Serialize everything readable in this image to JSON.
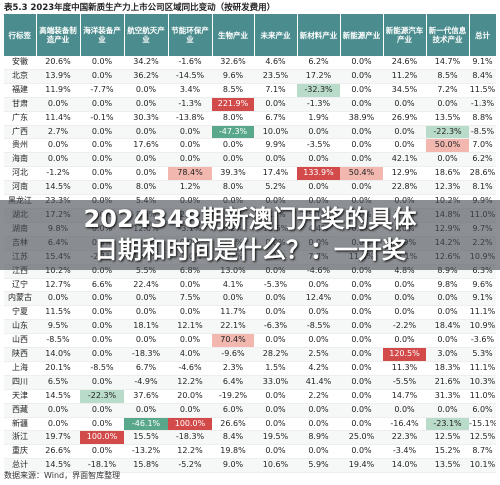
{
  "title": "表5.3 2023年度中国新质生产力上市公司区域同比变动（按研发费用）",
  "headers": [
    "行标签",
    "高端装备制造产业",
    "海洋装备产业",
    "航空航天产业",
    "节能环保产业",
    "生物产业",
    "未来产业",
    "新材料产业",
    "新能源产业",
    "新能源汽车产业",
    "新一代信息技术产业",
    "总计"
  ],
  "rows": [
    [
      "安徽",
      "20.6%",
      "0.0%",
      "34.2%",
      "-1.6%",
      "32.6%",
      "4.6%",
      "6.2%",
      "0.0%",
      "24.6%",
      "14.7%",
      "9.1%"
    ],
    [
      "北京",
      "13.9%",
      "0.0%",
      "36.2%",
      "-14.5%",
      "9.6%",
      "23.5%",
      "17.2%",
      "0.0%",
      "11.2%",
      "8.5%",
      "8.4%"
    ],
    [
      "福建",
      "11.9%",
      "-7.7%",
      "0.0%",
      "3.4%",
      "8.5%",
      "7.1%",
      "-32.3%",
      "0.0%",
      "34.5%",
      "7.2%",
      "11.5%"
    ],
    [
      "甘肃",
      "0.0%",
      "0.0%",
      "0.0%",
      "-1.3%",
      "221.9%",
      "0.0%",
      "-1.3%",
      "0.0%",
      "0.0%",
      "0.0%",
      "-1.3%"
    ],
    [
      "广东",
      "11.4%",
      "-0.1%",
      "30.3%",
      "-13.8%",
      "8.0%",
      "6.7%",
      "1.9%",
      "38.9%",
      "26.9%",
      "13.5%",
      "8.8%"
    ],
    [
      "广西",
      "2.7%",
      "0.0%",
      "0.0%",
      "0.0%",
      "-47.3%",
      "10.0%",
      "0.0%",
      "0.0%",
      "0.0%",
      "-22.3%",
      "-8.5%"
    ],
    [
      "贵州",
      "0.0%",
      "0.0%",
      "17.6%",
      "0.0%",
      "0.0%",
      "9.9%",
      "-3.5%",
      "0.0%",
      "0.0%",
      "50.0%",
      "7.0%"
    ],
    [
      "海南",
      "0.0%",
      "0.0%",
      "0.0%",
      "0.0%",
      "0.0%",
      "0.0%",
      "0.0%",
      "0.0%",
      "42.1%",
      "0.0%",
      "6.2%"
    ],
    [
      "河北",
      "-1.2%",
      "0.0%",
      "0.0%",
      "78.4%",
      "39.3%",
      "17.4%",
      "133.9%",
      "50.4%",
      "12.9%",
      "18.6%",
      "28.6%"
    ],
    [
      "河南",
      "14.5%",
      "0.0%",
      "8.0%",
      "1.2%",
      "8.0%",
      "5.2%",
      "0.0%",
      "0.0%",
      "22.8%",
      "12.3%",
      "8.1%"
    ],
    [
      "黑龙江",
      "23.3%",
      "0.0%",
      "5.4%",
      "0.0%",
      "0.0%",
      "0.0%",
      "0.0%",
      "0.0%",
      "0.0%",
      "10.2%",
      "9.9%"
    ],
    [
      "湖北",
      "17.2%",
      "0.0%",
      "8.6%",
      "2.7%",
      "11.1%",
      "9.3%",
      "5.1%",
      "0.0%",
      "5.2%",
      "14.8%",
      "11.0%"
    ],
    [
      "湖南",
      "9.8%",
      "0.0%",
      "12.0%",
      "-3.1%",
      "6.2%",
      "11.6%",
      "4.4%",
      "0.0%",
      "0.0%",
      "12.9%",
      "9.7%"
    ],
    [
      "吉林",
      "6.4%",
      "0.0%",
      "0.0%",
      "0.0%",
      "3.6%",
      "0.0%",
      "0.0%",
      "0.0%",
      "-8.9%",
      "14.2%",
      "2.2%"
    ],
    [
      "江苏",
      "15.4%",
      "-2.1%",
      "19.5%",
      "-4.0%",
      "9.2%",
      "8.1%",
      "7.7%",
      "11.8%",
      "14.1%",
      "12.6%",
      "10.9%"
    ],
    [
      "江西",
      "10.2%",
      "0.0%",
      "5.5%",
      "6.8%",
      "13.0%",
      "0.0%",
      "-4.6%",
      "0.0%",
      "4.8%",
      "8.9%",
      "6.3%"
    ],
    [
      "辽宁",
      "12.7%",
      "6.6%",
      "22.4%",
      "0.0%",
      "4.1%",
      "-5.3%",
      "0.0%",
      "0.0%",
      "0.0%",
      "9.8%",
      "9.6%"
    ],
    [
      "内蒙古",
      "0.0%",
      "0.0%",
      "0.0%",
      "7.5%",
      "0.0%",
      "0.0%",
      "12.4%",
      "0.0%",
      "0.0%",
      "0.0%",
      "9.1%"
    ],
    [
      "宁夏",
      "11.5%",
      "0.0%",
      "0.0%",
      "0.0%",
      "11.7%",
      "0.0%",
      "0.0%",
      "0.0%",
      "0.0%",
      "0.0%",
      "11.1%"
    ],
    [
      "山东",
      "9.5%",
      "0.0%",
      "18.1%",
      "12.1%",
      "22.1%",
      "-6.3%",
      "-8.5%",
      "0.0%",
      "-2.2%",
      "18.4%",
      "10.9%"
    ],
    [
      "山西",
      "-8.5%",
      "0.0%",
      "0.0%",
      "0.0%",
      "70.4%",
      "0.0%",
      "0.0%",
      "0.0%",
      "0.0%",
      "0.0%",
      "-3.6%"
    ],
    [
      "陕西",
      "14.0%",
      "0.0%",
      "-18.3%",
      "4.0%",
      "-9.6%",
      "28.2%",
      "2.5%",
      "0.0%",
      "120.5%",
      "3.0%",
      "5.3%"
    ],
    [
      "上海",
      "20.1%",
      "-8.5%",
      "6.7%",
      "-4.6%",
      "2.3%",
      "1.5%",
      "4.2%",
      "0.0%",
      "11.3%",
      "18.3%",
      "11.1%"
    ],
    [
      "四川",
      "6.5%",
      "0.0%",
      "-4.9%",
      "12.2%",
      "6.4%",
      "33.0%",
      "41.4%",
      "0.0%",
      "-5.5%",
      "21.6%",
      "10.3%"
    ],
    [
      "天津",
      "14.5%",
      "-22.3%",
      "37.6%",
      "20.0%",
      "-19.2%",
      "0.0%",
      "2.2%",
      "0.0%",
      "14.7%",
      "31.3%",
      "11.0%"
    ],
    [
      "西藏",
      "0.0%",
      "0.0%",
      "0.0%",
      "0.0%",
      "6.0%",
      "0.0%",
      "0.0%",
      "0.0%",
      "0.0%",
      "0.0%",
      "6.0%"
    ],
    [
      "新疆",
      "0.0%",
      "0.0%",
      "-46.1%",
      "100.0%",
      "26.6%",
      "0.0%",
      "0.0%",
      "0.0%",
      "-16.4%",
      "-23.1%",
      "-15.1%"
    ],
    [
      "浙江",
      "19.7%",
      "100.0%",
      "15.5%",
      "-18.3%",
      "8.4%",
      "19.5%",
      "8.9%",
      "25.0%",
      "22.3%",
      "12.5%",
      "12.5%"
    ],
    [
      "重庆",
      "26.6%",
      "0.0%",
      "-13.2%",
      "12.2%",
      "19.8%",
      "0.0%",
      "0.0%",
      "0.0%",
      "-3.4%",
      "15.2%",
      "8.7%"
    ],
    [
      "总计",
      "14.5%",
      "-18.1%",
      "15.8%",
      "-5.2%",
      "9.0%",
      "10.6%",
      "5.9%",
      "19.4%",
      "14.0%",
      "13.5%",
      "10.1%"
    ]
  ],
  "overlay_text": "2024348期新澳门开奖的具体\n日期和时间是什么？：一开奖",
  "source": "数据来源：Wind，界面智库整理",
  "colors": {
    "header_bg": "#4b8c8e",
    "negative_strong": "#5aa88c",
    "negative_light": "#b9dbc9",
    "positive_strong": "#d24a4a",
    "positive_light": "#f2b8b0"
  }
}
